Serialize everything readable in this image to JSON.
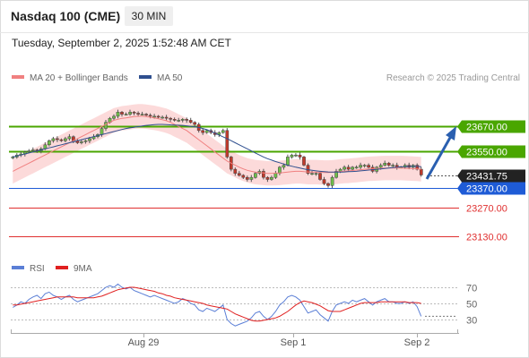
{
  "header": {
    "title": "Nasdaq 100 (CME)",
    "interval": "30 MIN",
    "timestamp": "Tuesday, September 2, 2025 1:52:48 AM CET"
  },
  "legend": {
    "ma20": "MA 20 + Bollinger Bands",
    "ma50": "MA 50",
    "copyright": "Research © 2025 Trading Central"
  },
  "rsi_legend": {
    "rsi": "RSI",
    "ma9": "9MA"
  },
  "colors": {
    "candle_up": "#6fbf4a",
    "candle_down": "#c0392b",
    "bollinger_fill": "#fbd3d3",
    "ma20": "#f08080",
    "ma50": "#2f4f8f",
    "resistance": "#4aa600",
    "pivot": "#1e5bd6",
    "support": "#e03030",
    "current": "#222222",
    "arrow": "#2a5fb0",
    "rsi": "#5b7fd6",
    "rsi_ma": "#e02020"
  },
  "chart_data": [
    {
      "type": "candlestick",
      "title": "",
      "ylim": [
        23080,
        23740
      ],
      "x_ticks": [
        "Aug 29",
        "Sep 1",
        "Sep 2"
      ],
      "levels": [
        {
          "label": "23670.00",
          "value": 23670,
          "kind": "resistance"
        },
        {
          "label": "23550.00",
          "value": 23550,
          "kind": "resistance"
        },
        {
          "label": "23431.75",
          "value": 23431.75,
          "kind": "current"
        },
        {
          "label": "23370.00",
          "value": 23370,
          "kind": "pivot"
        },
        {
          "label": "23270.00",
          "value": 23270,
          "kind": "support"
        },
        {
          "label": "23130.00",
          "value": 23130,
          "kind": "support"
        }
      ],
      "close": [
        23520,
        23530,
        23535,
        23545,
        23550,
        23555,
        23550,
        23560,
        23580,
        23600,
        23610,
        23605,
        23600,
        23610,
        23620,
        23600,
        23590,
        23595,
        23600,
        23610,
        23620,
        23630,
        23660,
        23690,
        23710,
        23720,
        23740,
        23730,
        23730,
        23740,
        23735,
        23730,
        23730,
        23725,
        23720,
        23720,
        23715,
        23715,
        23710,
        23705,
        23700,
        23700,
        23705,
        23700,
        23690,
        23680,
        23650,
        23640,
        23650,
        23640,
        23630,
        23640,
        23650,
        23520,
        23460,
        23440,
        23430,
        23420,
        23410,
        23420,
        23440,
        23450,
        23420,
        23410,
        23420,
        23440,
        23470,
        23480,
        23520,
        23530,
        23530,
        23520,
        23480,
        23440,
        23440,
        23440,
        23410,
        23390,
        23380,
        23420,
        23450,
        23460,
        23470,
        23460,
        23470,
        23470,
        23480,
        23480,
        23470,
        23450,
        23470,
        23480,
        23490,
        23480,
        23480,
        23470,
        23470,
        23480,
        23470,
        23480,
        23460,
        23431.75
      ],
      "ma20": [
        23450,
        23460,
        23470,
        23480,
        23490,
        23500,
        23510,
        23520,
        23530,
        23540,
        23550,
        23560,
        23570,
        23580,
        23590,
        23600,
        23610,
        23620,
        23630,
        23640,
        23650,
        23660,
        23670,
        23680,
        23690,
        23700,
        23705,
        23710,
        23712,
        23715,
        23718,
        23720,
        23720,
        23718,
        23715,
        23712,
        23708,
        23703,
        23698,
        23690,
        23680,
        23670,
        23660,
        23650,
        23635,
        23620,
        23605,
        23590,
        23575,
        23560,
        23545,
        23530,
        23515,
        23500,
        23490,
        23480,
        23470,
        23462,
        23455,
        23450,
        23446,
        23444,
        23442,
        23440,
        23440,
        23441,
        23442,
        23444,
        23446,
        23448,
        23450,
        23450,
        23448,
        23446,
        23446,
        23446,
        23445,
        23444,
        23444,
        23445,
        23447,
        23449,
        23451,
        23452,
        23454,
        23456,
        23458,
        23460,
        23462,
        23463,
        23464,
        23465,
        23466,
        23466,
        23466,
        23466,
        23466,
        23465,
        23464,
        23463,
        23462,
        23460
      ],
      "ma50": [
        23520,
        23525,
        23530,
        23535,
        23540,
        23545,
        23550,
        23555,
        23560,
        23565,
        23570,
        23575,
        23580,
        23585,
        23590,
        23595,
        23600,
        23605,
        23610,
        23615,
        23620,
        23625,
        23630,
        23635,
        23640,
        23645,
        23650,
        23655,
        23660,
        23663,
        23666,
        23669,
        23672,
        23675,
        23677,
        23679,
        23680,
        23680,
        23679,
        23678,
        23677,
        23676,
        23675,
        23673,
        23671,
        23668,
        23665,
        23660,
        23654,
        23646,
        23637,
        23628,
        23619,
        23610,
        23600,
        23590,
        23580,
        23570,
        23560,
        23550,
        23540,
        23530,
        23520,
        23512,
        23505,
        23498,
        23492,
        23486,
        23480,
        23475,
        23470,
        23466,
        23462,
        23458,
        23455,
        23452,
        23450,
        23448,
        23447,
        23446,
        23446,
        23446,
        23447,
        23448,
        23449,
        23450,
        23452,
        23454,
        23456,
        23458,
        23460,
        23462,
        23464,
        23466,
        23468,
        23470,
        23472,
        23473,
        23474,
        23474,
        23474,
        23473
      ],
      "bollinger_width": 60
    },
    {
      "type": "line",
      "title": "RSI",
      "ylim": [
        10,
        80
      ],
      "y_ticks": [
        "70",
        "50",
        "30"
      ],
      "series": [
        {
          "name": "RSI",
          "values": [
            45,
            48,
            52,
            50,
            55,
            58,
            60,
            56,
            62,
            64,
            60,
            58,
            55,
            58,
            60,
            55,
            52,
            54,
            56,
            58,
            60,
            62,
            66,
            70,
            72,
            70,
            74,
            70,
            68,
            70,
            66,
            64,
            62,
            60,
            58,
            60,
            58,
            56,
            54,
            52,
            50,
            52,
            56,
            54,
            50,
            48,
            42,
            40,
            44,
            42,
            40,
            44,
            48,
            30,
            25,
            22,
            24,
            26,
            28,
            32,
            38,
            40,
            34,
            30,
            34,
            40,
            48,
            52,
            58,
            60,
            58,
            54,
            46,
            38,
            40,
            42,
            36,
            32,
            28,
            40,
            48,
            50,
            52,
            50,
            54,
            52,
            54,
            56,
            52,
            48,
            52,
            54,
            56,
            52,
            52,
            50,
            50,
            52,
            50,
            52,
            46,
            34
          ]
        },
        {
          "name": "9MA",
          "values": [
            48,
            48,
            49,
            50,
            51,
            52,
            53,
            54,
            55,
            56,
            57,
            58,
            58,
            58,
            58,
            58,
            57,
            57,
            57,
            57,
            57,
            58,
            59,
            61,
            63,
            65,
            67,
            68,
            69,
            70,
            70,
            69,
            68,
            67,
            66,
            65,
            63,
            62,
            60,
            59,
            57,
            56,
            55,
            54,
            53,
            52,
            51,
            50,
            48,
            47,
            46,
            45,
            44,
            43,
            40,
            37,
            35,
            33,
            31,
            29,
            28,
            28,
            29,
            30,
            31,
            32,
            34,
            37,
            40,
            44,
            48,
            51,
            53,
            52,
            51,
            49,
            47,
            44,
            41,
            40,
            40,
            40,
            42,
            44,
            46,
            48,
            50,
            51,
            51,
            51,
            51,
            52,
            52,
            52,
            52,
            52,
            52,
            52,
            51,
            51,
            51,
            50
          ]
        }
      ]
    }
  ]
}
